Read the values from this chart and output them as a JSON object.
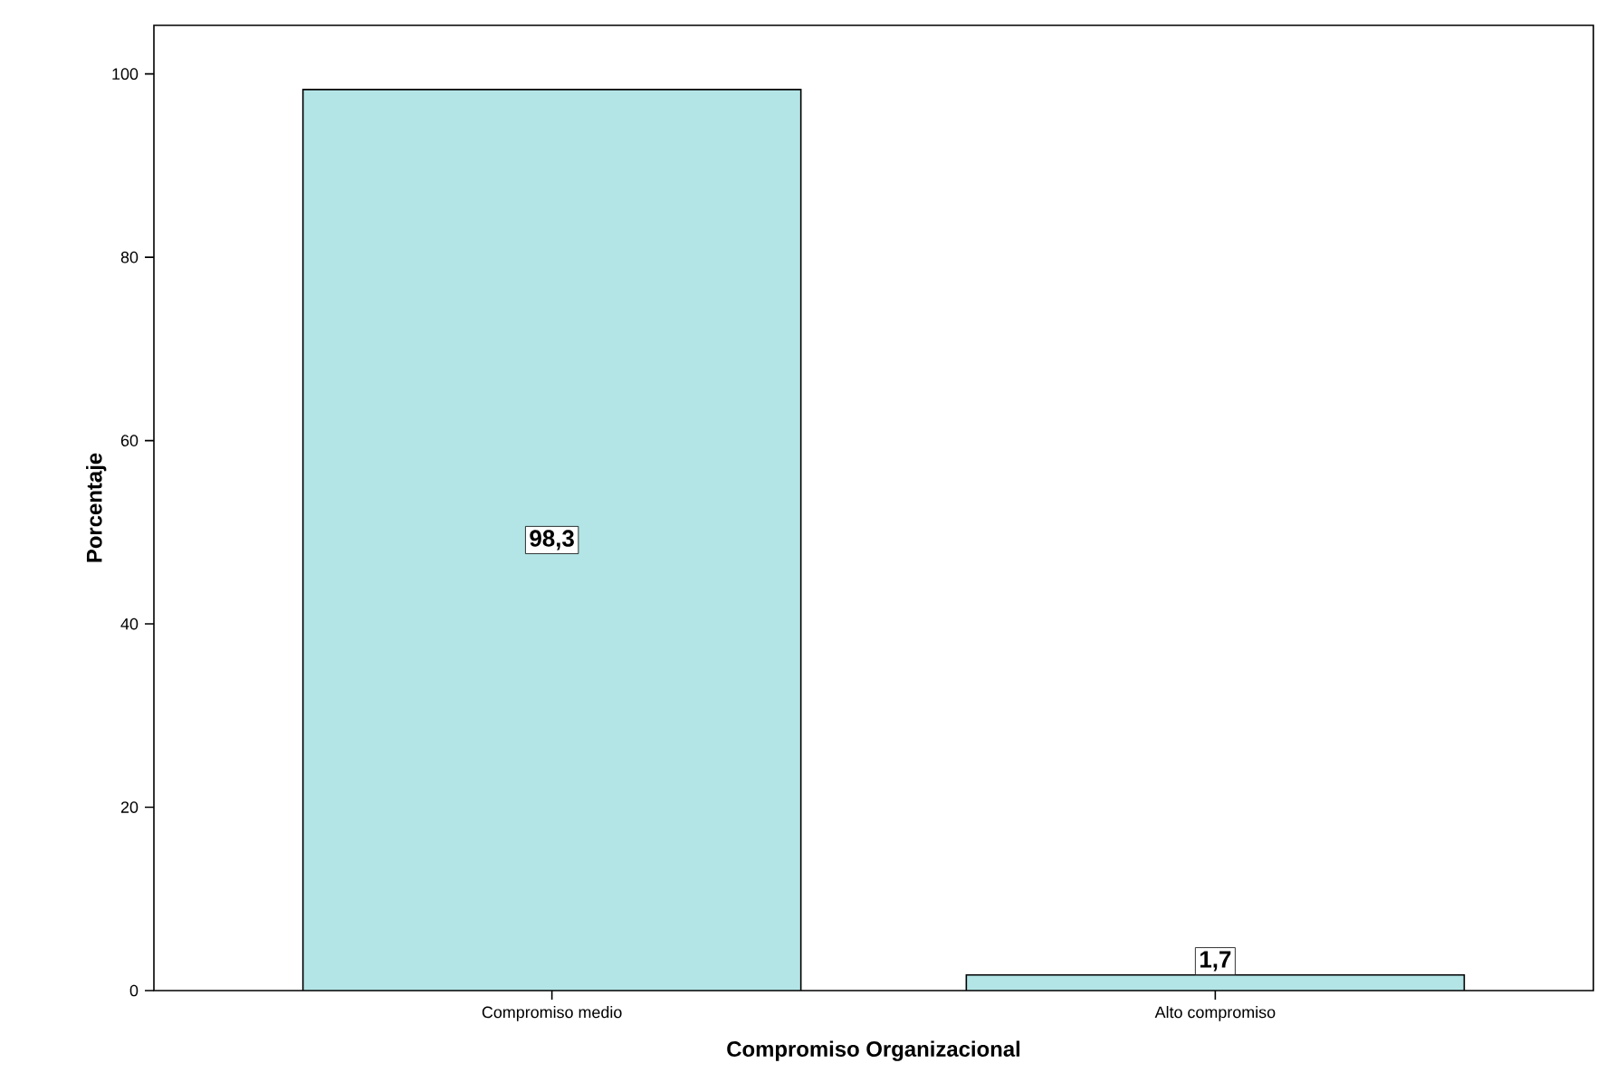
{
  "chart_data": {
    "type": "bar",
    "xlabel": "Compromiso Organizacional",
    "ylabel": "Porcentaje",
    "categories": [
      "Compromiso medio",
      "Alto compromiso"
    ],
    "values": [
      98.3,
      1.7
    ],
    "value_labels": [
      "98,3",
      "1,7"
    ],
    "color": "#b3e5e6",
    "ylim": [
      0,
      105.3
    ],
    "yticks": [
      0,
      20,
      40,
      60,
      80,
      100
    ],
    "grid": false
  }
}
